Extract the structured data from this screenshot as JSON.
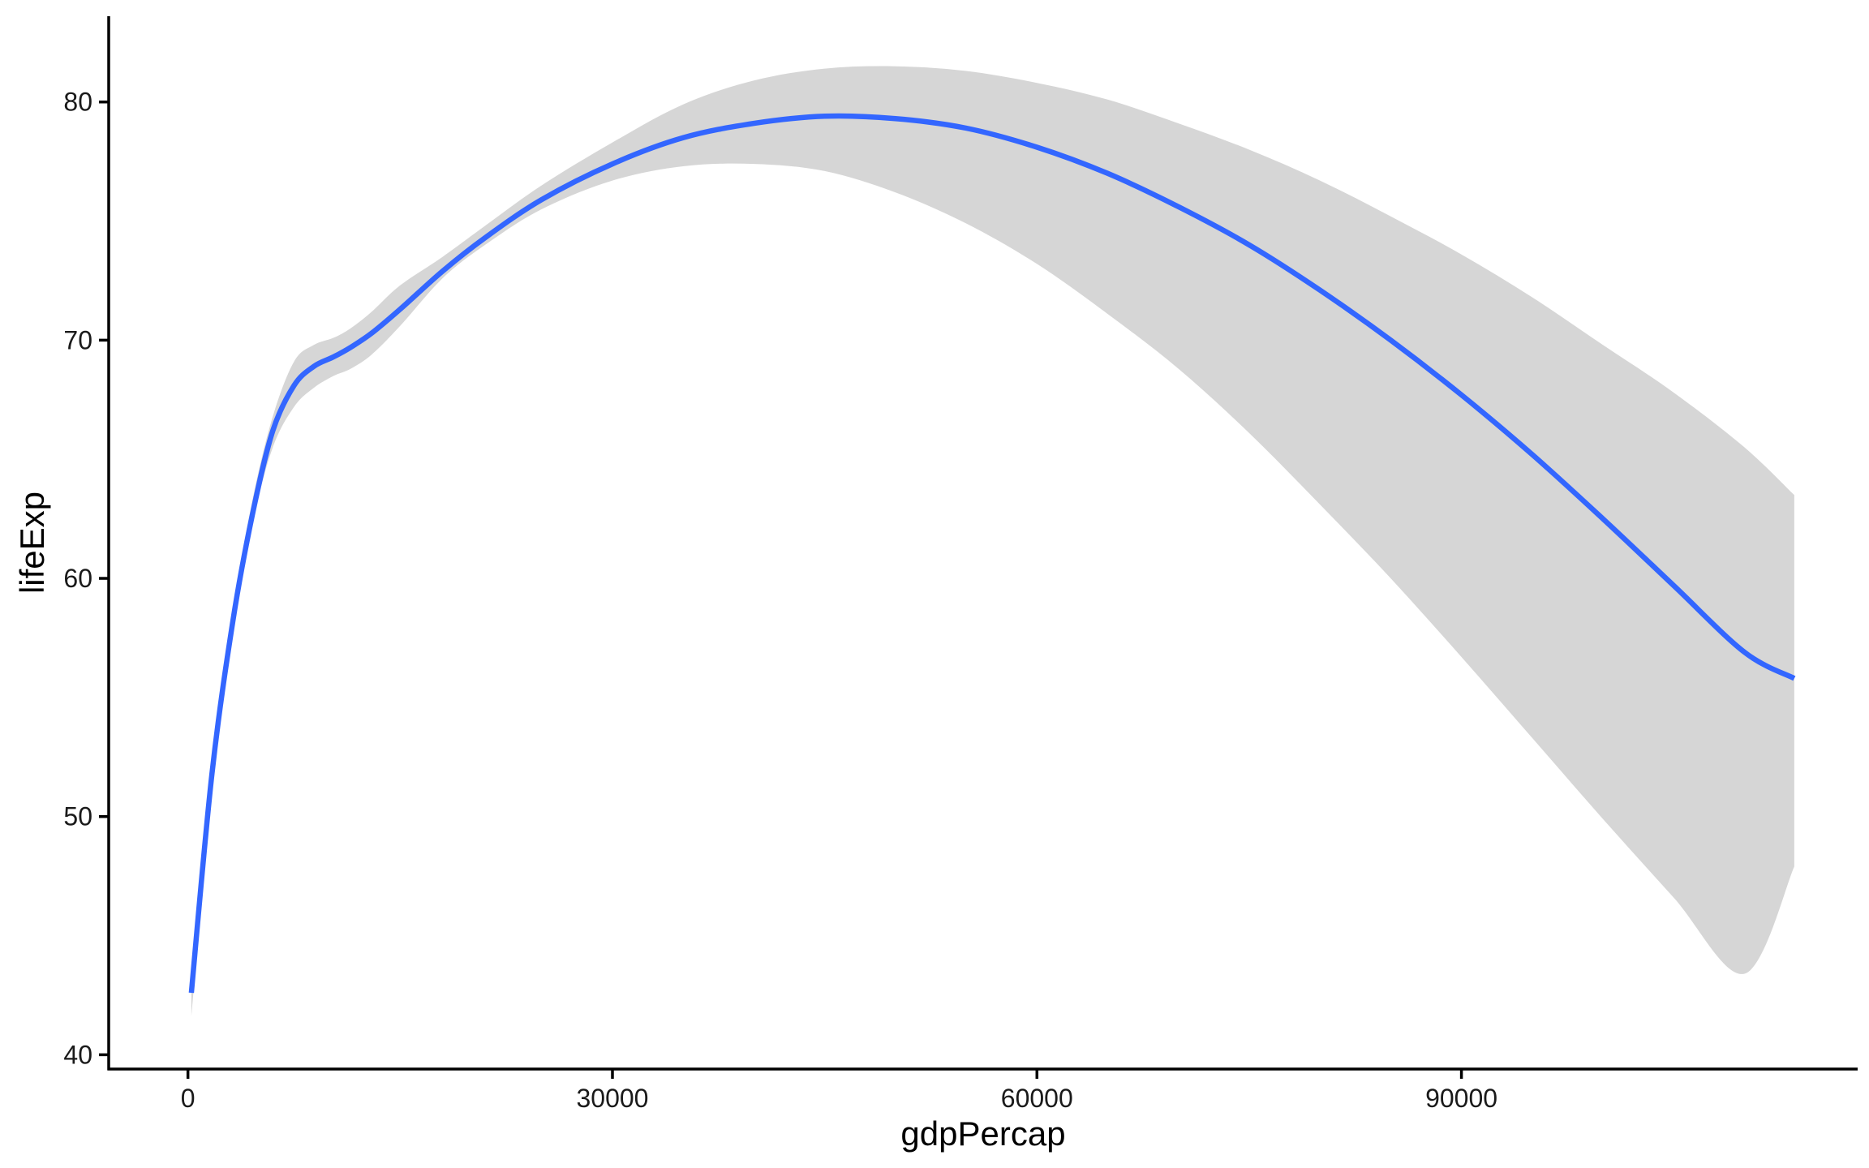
{
  "chart_data": {
    "type": "line",
    "title": "",
    "xlabel": "gdpPercap",
    "ylabel": "lifeExp",
    "xlim": [
      -5600,
      118000
    ],
    "ylim": [
      39.4,
      83.6
    ],
    "x_ticks": [
      0,
      30000,
      60000,
      90000
    ],
    "x_tick_labels": [
      "0",
      "30000",
      "60000",
      "90000"
    ],
    "y_ticks": [
      40,
      50,
      60,
      70,
      80
    ],
    "y_tick_labels": [
      "40",
      "50",
      "60",
      "70",
      "80"
    ],
    "grid": false,
    "legend": "none",
    "series": [
      {
        "kind": "smooth",
        "color": "#3366FF",
        "band_color": "#D6D6D6",
        "x": [
          241,
          1700,
          3200,
          4600,
          6000,
          7500,
          8900,
          10300,
          11500,
          13000,
          15000,
          18000,
          21000,
          25000,
          30000,
          35000,
          40000,
          45000,
          50000,
          55000,
          60000,
          65000,
          70000,
          75000,
          80000,
          85000,
          90000,
          95000,
          100000,
          105000,
          110000,
          113523
        ],
        "y": [
          42.6,
          51.8,
          58.3,
          62.8,
          66.2,
          68.1,
          68.9,
          69.3,
          69.7,
          70.3,
          71.3,
          72.9,
          74.3,
          75.9,
          77.4,
          78.5,
          79.1,
          79.4,
          79.3,
          78.9,
          78.1,
          77.0,
          75.6,
          74.0,
          72.1,
          70.0,
          67.7,
          65.2,
          62.5,
          59.7,
          56.9,
          55.8
        ],
        "y_low": [
          41.6,
          51.3,
          57.8,
          62.4,
          65.5,
          67.2,
          68.0,
          68.5,
          68.8,
          69.4,
          70.6,
          72.6,
          74.0,
          75.5,
          76.7,
          77.3,
          77.4,
          77.1,
          76.2,
          74.9,
          73.2,
          71.1,
          68.8,
          66.1,
          63.1,
          60.0,
          56.7,
          53.3,
          49.9,
          46.6,
          43.4,
          47.9
        ],
        "y_high": [
          43.2,
          52.3,
          58.8,
          63.4,
          66.8,
          69.1,
          69.8,
          70.1,
          70.5,
          71.2,
          72.3,
          73.5,
          74.8,
          76.5,
          78.3,
          79.9,
          80.9,
          81.4,
          81.5,
          81.3,
          80.8,
          80.1,
          79.1,
          78.0,
          76.7,
          75.2,
          73.6,
          71.8,
          69.8,
          67.8,
          65.5,
          63.5
        ]
      }
    ]
  }
}
